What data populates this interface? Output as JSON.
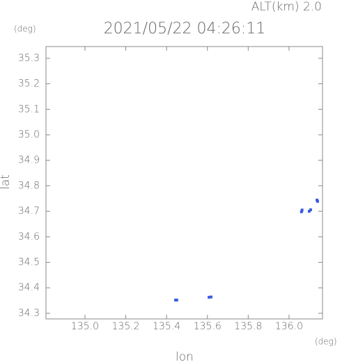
{
  "chart_data": {
    "type": "scatter",
    "title": "2021/05/22 04:26:11",
    "annotation": "ALT(km) 2.0",
    "y_unit": "(deg)",
    "x_unit": "(deg)",
    "xlabel": "lon",
    "ylabel": "lat",
    "color": "#3a5ce0",
    "x": [
      135.444,
      135.45,
      135.608,
      135.618,
      136.061,
      136.064,
      136.099,
      136.106,
      136.137,
      136.14
    ],
    "y": [
      34.352,
      34.352,
      34.363,
      34.364,
      34.698,
      34.705,
      34.7,
      34.706,
      34.744,
      34.739
    ],
    "xlim": [
      134.809,
      136.164
    ],
    "ylim": [
      34.278,
      35.346
    ],
    "xticks": [
      {
        "value": 135.0,
        "label": "135.0"
      },
      135.2,
      135.4,
      135.6,
      135.8,
      {
        "value": 136.0,
        "label": "136.0"
      }
    ],
    "yticks": [
      35.3,
      35.2,
      35.1,
      {
        "value": 35.0,
        "label": "35.0"
      },
      34.9,
      34.8,
      34.7,
      34.6,
      34.5,
      34.4,
      34.3
    ]
  }
}
